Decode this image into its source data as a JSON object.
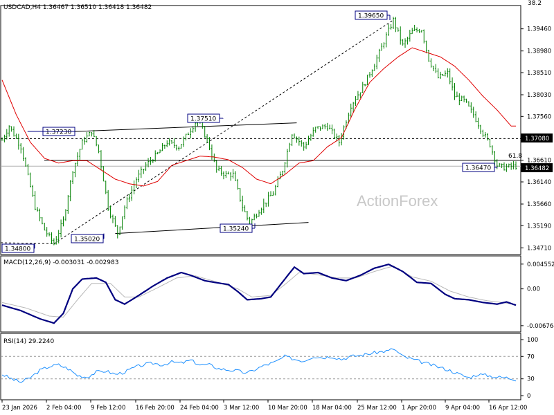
{
  "chart_data": [
    {
      "type": "candlestick",
      "title": "USDCAD,H4  1.36467 1.36510 1.36418 1.36482",
      "watermark": "ActionForex",
      "y_ticks": [
        "1.39460",
        "1.38980",
        "1.38510",
        "1.38030",
        "1.37560",
        "1.37080",
        "1.36610",
        "1.36482",
        "1.36140",
        "1.35660",
        "1.35190",
        "1.34710"
      ],
      "top_right_label": "38.2",
      "fib_label": "61.8",
      "ylim": [
        1.3458,
        1.3995
      ],
      "current_price": 1.36482,
      "current_price_label": "1.36482",
      "resistance_line": 1.3708,
      "resistance_label": "1.37080",
      "fib_level": 1.3661,
      "annotations": [
        {
          "label": "1.37230",
          "value": 1.3723
        },
        {
          "label": "1.37510",
          "value": 1.3751
        },
        {
          "label": "1.39650",
          "value": 1.3965
        },
        {
          "label": "1.34800",
          "value": 1.348
        },
        {
          "label": "1.35020",
          "value": 1.3502
        },
        {
          "label": "1.35240",
          "value": 1.3524
        },
        {
          "label": "1.36470",
          "value": 1.3647
        }
      ],
      "close_path": [
        [
          0,
          1.3705
        ],
        [
          3,
          1.3735
        ],
        [
          8,
          1.369
        ],
        [
          14,
          1.356
        ],
        [
          18,
          1.351
        ],
        [
          22,
          1.348
        ],
        [
          26,
          1.353
        ],
        [
          30,
          1.364
        ],
        [
          34,
          1.37
        ],
        [
          38,
          1.3723
        ],
        [
          41,
          1.368
        ],
        [
          45,
          1.356
        ],
        [
          49,
          1.3502
        ],
        [
          52,
          1.356
        ],
        [
          57,
          1.362
        ],
        [
          61,
          1.365
        ],
        [
          66,
          1.3675
        ],
        [
          70,
          1.37
        ],
        [
          75,
          1.369
        ],
        [
          79,
          1.372
        ],
        [
          83,
          1.3751
        ],
        [
          87,
          1.3705
        ],
        [
          91,
          1.364
        ],
        [
          95,
          1.363
        ],
        [
          98,
          1.363
        ],
        [
          102,
          1.356
        ],
        [
          105,
          1.3524
        ],
        [
          110,
          1.356
        ],
        [
          115,
          1.359
        ],
        [
          119,
          1.364
        ],
        [
          123,
          1.372
        ],
        [
          128,
          1.369
        ],
        [
          133,
          1.373
        ],
        [
          138,
          1.3735
        ],
        [
          143,
          1.37
        ],
        [
          148,
          1.378
        ],
        [
          153,
          1.382
        ],
        [
          158,
          1.387
        ],
        [
          163,
          1.393
        ],
        [
          166,
          1.3965
        ],
        [
          170,
          1.391
        ],
        [
          174,
          1.394
        ],
        [
          178,
          1.3945
        ],
        [
          181,
          1.388
        ],
        [
          185,
          1.384
        ],
        [
          189,
          1.385
        ],
        [
          192,
          1.38
        ],
        [
          196,
          1.379
        ],
        [
          200,
          1.376
        ],
        [
          204,
          1.372
        ],
        [
          207,
          1.3695
        ],
        [
          210,
          1.365
        ],
        [
          213,
          1.3645
        ],
        [
          216,
          1.3648
        ]
      ],
      "ma_path": [
        [
          0,
          1.3835
        ],
        [
          6,
          1.376
        ],
        [
          12,
          1.37
        ],
        [
          18,
          1.3665
        ],
        [
          24,
          1.3655
        ],
        [
          30,
          1.366
        ],
        [
          36,
          1.366
        ],
        [
          42,
          1.364
        ],
        [
          48,
          1.362
        ],
        [
          54,
          1.361
        ],
        [
          60,
          1.3605
        ],
        [
          66,
          1.3615
        ],
        [
          72,
          1.365
        ],
        [
          78,
          1.366
        ],
        [
          84,
          1.367
        ],
        [
          90,
          1.3668
        ],
        [
          96,
          1.3662
        ],
        [
          102,
          1.3645
        ],
        [
          108,
          1.362
        ],
        [
          114,
          1.361
        ],
        [
          120,
          1.363
        ],
        [
          126,
          1.3655
        ],
        [
          132,
          1.366
        ],
        [
          138,
          1.369
        ],
        [
          144,
          1.371
        ],
        [
          150,
          1.3775
        ],
        [
          156,
          1.383
        ],
        [
          162,
          1.386
        ],
        [
          168,
          1.3885
        ],
        [
          174,
          1.3905
        ],
        [
          180,
          1.3895
        ],
        [
          186,
          1.3885
        ],
        [
          192,
          1.3865
        ],
        [
          198,
          1.3835
        ],
        [
          204,
          1.38
        ],
        [
          210,
          1.377
        ],
        [
          216,
          1.3735
        ]
      ]
    },
    {
      "type": "line",
      "title": "MACD(12,26,9) -0.003031 -0.002983",
      "y_ticks": [
        "0.004552",
        "0.00",
        "-0.006764"
      ],
      "ylim": [
        -0.0078,
        0.0058
      ],
      "series": [
        {
          "role": "macd",
          "color": "#000080",
          "values": [
            [
              0,
              -0.003
            ],
            [
              8,
              -0.004
            ],
            [
              16,
              -0.0055
            ],
            [
              22,
              -0.0063
            ],
            [
              26,
              -0.0045
            ],
            [
              30,
              0.0
            ],
            [
              34,
              0.0018
            ],
            [
              40,
              0.002
            ],
            [
              44,
              0.0012
            ],
            [
              48,
              -0.002
            ],
            [
              52,
              -0.0028
            ],
            [
              58,
              -0.0012
            ],
            [
              64,
              0.0005
            ],
            [
              70,
              0.002
            ],
            [
              76,
              0.003
            ],
            [
              80,
              0.0025
            ],
            [
              86,
              0.0015
            ],
            [
              90,
              0.0012
            ],
            [
              96,
              0.0008
            ],
            [
              100,
              -0.0005
            ],
            [
              104,
              -0.002
            ],
            [
              110,
              -0.0018
            ],
            [
              114,
              -0.0015
            ],
            [
              120,
              0.0018
            ],
            [
              124,
              0.004
            ],
            [
              128,
              0.0028
            ],
            [
              134,
              0.003
            ],
            [
              140,
              0.002
            ],
            [
              146,
              0.0015
            ],
            [
              152,
              0.0025
            ],
            [
              158,
              0.0038
            ],
            [
              164,
              0.0045
            ],
            [
              170,
              0.0032
            ],
            [
              176,
              0.0012
            ],
            [
              182,
              0.001
            ],
            [
              188,
              -0.001
            ],
            [
              192,
              -0.0018
            ],
            [
              198,
              -0.002
            ],
            [
              204,
              -0.0025
            ],
            [
              210,
              -0.0028
            ],
            [
              214,
              -0.0024
            ],
            [
              218,
              -0.003
            ]
          ]
        },
        {
          "role": "signal",
          "color": "#c0c0c0",
          "values": [
            [
              0,
              -0.0025
            ],
            [
              10,
              -0.0035
            ],
            [
              20,
              -0.005
            ],
            [
              26,
              -0.0052
            ],
            [
              32,
              -0.002
            ],
            [
              38,
              0.001
            ],
            [
              46,
              0.001
            ],
            [
              52,
              -0.0015
            ],
            [
              58,
              -0.0015
            ],
            [
              66,
              0.0002
            ],
            [
              74,
              0.002
            ],
            [
              82,
              0.0024
            ],
            [
              90,
              0.0014
            ],
            [
              100,
              0.0
            ],
            [
              106,
              -0.0015
            ],
            [
              114,
              -0.0012
            ],
            [
              120,
              0.0008
            ],
            [
              126,
              0.003
            ],
            [
              134,
              0.0026
            ],
            [
              142,
              0.002
            ],
            [
              150,
              0.002
            ],
            [
              158,
              0.0032
            ],
            [
              166,
              0.0042
            ],
            [
              174,
              0.0022
            ],
            [
              182,
              0.0014
            ],
            [
              190,
              -0.0004
            ],
            [
              198,
              -0.0015
            ],
            [
              206,
              -0.0022
            ],
            [
              212,
              -0.0025
            ],
            [
              218,
              -0.0029
            ]
          ]
        }
      ]
    },
    {
      "type": "line",
      "title": "RSI(14) 29.2240",
      "y_ticks": [
        "100",
        "70",
        "30",
        "0"
      ],
      "levels": [
        70,
        30
      ],
      "ylim": [
        0,
        100
      ],
      "series": [
        {
          "role": "rsi",
          "color": "#1e90ff",
          "values": [
            [
              0,
              38
            ],
            [
              4,
              30
            ],
            [
              8,
              24
            ],
            [
              12,
              32
            ],
            [
              16,
              45
            ],
            [
              20,
              52
            ],
            [
              24,
              55
            ],
            [
              28,
              48
            ],
            [
              32,
              36
            ],
            [
              36,
              33
            ],
            [
              40,
              42
            ],
            [
              44,
              44
            ],
            [
              48,
              38
            ],
            [
              52,
              42
            ],
            [
              56,
              50
            ],
            [
              60,
              55
            ],
            [
              64,
              58
            ],
            [
              68,
              55
            ],
            [
              72,
              60
            ],
            [
              76,
              58
            ],
            [
              80,
              63
            ],
            [
              84,
              55
            ],
            [
              88,
              55
            ],
            [
              92,
              48
            ],
            [
              96,
              46
            ],
            [
              100,
              44
            ],
            [
              104,
              40
            ],
            [
              108,
              48
            ],
            [
              112,
              55
            ],
            [
              116,
              60
            ],
            [
              120,
              70
            ],
            [
              124,
              65
            ],
            [
              128,
              62
            ],
            [
              132,
              70
            ],
            [
              136,
              68
            ],
            [
              140,
              70
            ],
            [
              144,
              65
            ],
            [
              148,
              70
            ],
            [
              152,
              72
            ],
            [
              156,
              75
            ],
            [
              160,
              78
            ],
            [
              164,
              80
            ],
            [
              166,
              84
            ],
            [
              170,
              70
            ],
            [
              174,
              65
            ],
            [
              178,
              60
            ],
            [
              182,
              55
            ],
            [
              186,
              50
            ],
            [
              190,
              45
            ],
            [
              194,
              38
            ],
            [
              198,
              32
            ],
            [
              202,
              38
            ],
            [
              206,
              36
            ],
            [
              210,
              33
            ],
            [
              214,
              32
            ],
            [
              218,
              29
            ]
          ]
        }
      ]
    }
  ],
  "x_axis_labels": [
    "23 Jan 2026",
    "2 Feb 04:00",
    "9 Feb 12:00",
    "16 Feb 20:00",
    "24 Feb 04:00",
    "3 Mar 12:00",
    "10 Mar 20:00",
    "18 Mar 04:00",
    "25 Mar 12:00",
    "1 Apr 20:00",
    "9 Apr 04:00",
    "16 Apr 12:00"
  ],
  "colors": {
    "candle": "#008000",
    "ma": "#e00000",
    "macd": "#000080",
    "signal": "#c0c0c0",
    "rsi": "#1e90ff",
    "label_box": "#000080"
  }
}
